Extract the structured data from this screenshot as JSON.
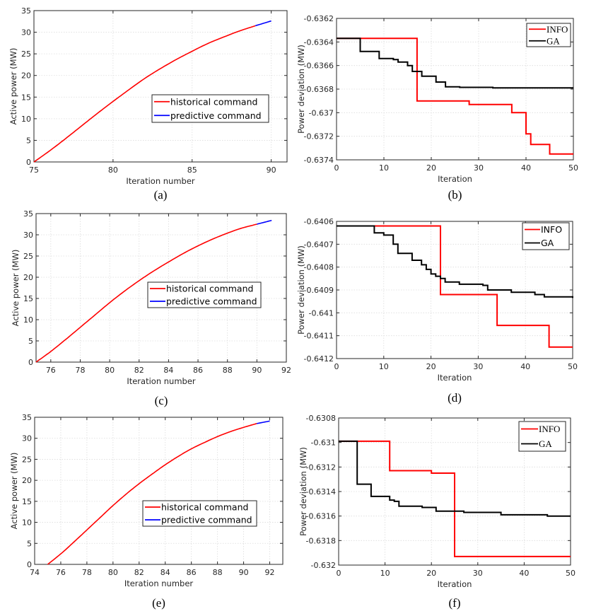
{
  "chart_data": [
    {
      "id": "a",
      "type": "line",
      "caption": "(a)",
      "xlabel": "Iteration number",
      "ylabel": "Active power (MW)",
      "xlim": [
        75,
        91
      ],
      "ylim": [
        0,
        35
      ],
      "xticks": [
        75,
        80,
        85,
        90
      ],
      "yticks": [
        0,
        5,
        10,
        15,
        20,
        25,
        30,
        35
      ],
      "grid": true,
      "legend_position": "center-right",
      "legend_style": "sans",
      "series": [
        {
          "name": "historical command",
          "color": "#ff0000",
          "x": [
            75,
            76,
            77,
            78,
            79,
            80,
            81,
            82,
            83,
            84,
            85,
            86,
            87,
            88,
            89
          ],
          "y": [
            0,
            2.6,
            5.4,
            8.3,
            11.2,
            14.0,
            16.7,
            19.3,
            21.6,
            23.7,
            25.6,
            27.4,
            28.9,
            30.3,
            31.5
          ]
        },
        {
          "name": "predictive command",
          "color": "#0000ff",
          "x": [
            89,
            90
          ],
          "y": [
            31.5,
            32.6
          ]
        }
      ]
    },
    {
      "id": "b",
      "type": "line",
      "step": true,
      "caption": "(b)",
      "xlabel": "Iteration",
      "ylabel": "Power deviation (MW)",
      "xlim": [
        0,
        50
      ],
      "ylim": [
        -0.6374,
        -0.6362
      ],
      "xticks": [
        0,
        10,
        20,
        30,
        40,
        50
      ],
      "yticks": [
        -0.6374,
        -0.6372,
        -0.637,
        -0.6368,
        -0.6366,
        -0.6364,
        -0.6362
      ],
      "ytick_labels": [
        "-0.6374",
        "-0.6372",
        "-0.637",
        "-0.6368",
        "-0.6366",
        "-0.6364",
        "-0.6362"
      ],
      "grid": true,
      "legend_position": "top-right",
      "legend_style": "serif",
      "series": [
        {
          "name": "INFO",
          "color": "#ff0000",
          "x": [
            0,
            17,
            28,
            37,
            40,
            41,
            45,
            50
          ],
          "y": [
            -0.63637,
            -0.6369,
            -0.63693,
            -0.637,
            -0.63718,
            -0.63727,
            -0.63735,
            -0.63735
          ]
        },
        {
          "name": "GA",
          "color": "#000000",
          "x": [
            0,
            5,
            9,
            12,
            13,
            15,
            16,
            18,
            21,
            23,
            26,
            33,
            50
          ],
          "y": [
            -0.63637,
            -0.63648,
            -0.63654,
            -0.63655,
            -0.63657,
            -0.6366,
            -0.63665,
            -0.63669,
            -0.63674,
            -0.63678,
            -0.636785,
            -0.63679,
            -0.63679
          ]
        }
      ]
    },
    {
      "id": "c",
      "type": "line",
      "caption": "(c)",
      "xlabel": "Iteration number",
      "ylabel": "Active power (MW)",
      "xlim": [
        75,
        92
      ],
      "ylim": [
        0,
        35
      ],
      "xticks": [
        76,
        78,
        80,
        82,
        84,
        86,
        88,
        90,
        92
      ],
      "yticks": [
        0,
        5,
        10,
        15,
        20,
        25,
        30,
        35
      ],
      "grid": true,
      "legend_position": "center-right",
      "legend_style": "sans",
      "series": [
        {
          "name": "historical command",
          "color": "#ff0000",
          "x": [
            75,
            76,
            77,
            78,
            79,
            80,
            81,
            82,
            83,
            84,
            85,
            86,
            87,
            88,
            89,
            90
          ],
          "y": [
            0,
            2.5,
            5.3,
            8.2,
            11.1,
            14.0,
            16.7,
            19.2,
            21.5,
            23.6,
            25.6,
            27.4,
            29.0,
            30.4,
            31.6,
            32.5
          ]
        },
        {
          "name": "predictive command",
          "color": "#0000ff",
          "x": [
            90,
            91
          ],
          "y": [
            32.5,
            33.4
          ]
        }
      ]
    },
    {
      "id": "d",
      "type": "line",
      "step": true,
      "caption": "(d)",
      "xlabel": "Iteration",
      "ylabel": "Power deviation (MW)",
      "xlim": [
        0,
        50
      ],
      "ylim": [
        -0.6412,
        -0.6406
      ],
      "xticks": [
        0,
        10,
        20,
        30,
        40,
        50
      ],
      "yticks": [
        -0.6412,
        -0.6411,
        -0.641,
        -0.6409,
        -0.6408,
        -0.6407,
        -0.6406
      ],
      "ytick_labels": [
        "-0.6412",
        "-0.6411",
        "-0.641",
        "-0.6409",
        "-0.6408",
        "-0.6407",
        "-0.6406"
      ],
      "grid": true,
      "legend_position": "top-right",
      "legend_style": "sans",
      "series": [
        {
          "name": "INFO",
          "color": "#ff0000",
          "x": [
            0,
            22,
            34,
            45,
            50
          ],
          "y": [
            -0.64062,
            -0.64092,
            -0.641055,
            -0.64115,
            -0.64115
          ]
        },
        {
          "name": "GA",
          "color": "#000000",
          "x": [
            0,
            8,
            10,
            12,
            13,
            16,
            18,
            19,
            20,
            21,
            22,
            23,
            26,
            31,
            32,
            37,
            42,
            44,
            50
          ],
          "y": [
            -0.64062,
            -0.64065,
            -0.64066,
            -0.6407,
            -0.64074,
            -0.64077,
            -0.64079,
            -0.64081,
            -0.64083,
            -0.64084,
            -0.64085,
            -0.640865,
            -0.640875,
            -0.64088,
            -0.6409,
            -0.64091,
            -0.64092,
            -0.64093,
            -0.640935
          ]
        }
      ]
    },
    {
      "id": "e",
      "type": "line",
      "caption": "(e)",
      "xlabel": "Iteration number",
      "ylabel": "Active power (MW)",
      "xlim": [
        74,
        93
      ],
      "ylim": [
        0,
        35
      ],
      "xticks": [
        74,
        76,
        78,
        80,
        82,
        84,
        86,
        88,
        90,
        92
      ],
      "yticks": [
        0,
        5,
        10,
        15,
        20,
        25,
        30,
        35
      ],
      "grid": true,
      "legend_position": "center-right",
      "legend_style": "sans",
      "series": [
        {
          "name": "historical command",
          "color": "#ff0000",
          "x": [
            75,
            76,
            77,
            78,
            79,
            80,
            81,
            82,
            83,
            84,
            85,
            86,
            87,
            88,
            89,
            90,
            91
          ],
          "y": [
            0,
            2.5,
            5.3,
            8.2,
            11.1,
            14.0,
            16.7,
            19.2,
            21.5,
            23.7,
            25.7,
            27.5,
            29.0,
            30.4,
            31.6,
            32.6,
            33.5
          ]
        },
        {
          "name": "predictive command",
          "color": "#0000ff",
          "x": [
            91,
            92
          ],
          "y": [
            33.5,
            34.1
          ]
        }
      ]
    },
    {
      "id": "f",
      "type": "line",
      "step": true,
      "caption": "(f)",
      "xlabel": "Iteration",
      "ylabel": "Power deviation (MW)",
      "xlim": [
        0,
        50
      ],
      "ylim": [
        -0.632,
        -0.6308
      ],
      "xticks": [
        0,
        10,
        20,
        30,
        40,
        50
      ],
      "yticks": [
        -0.632,
        -0.6318,
        -0.6316,
        -0.6314,
        -0.6312,
        -0.631,
        -0.6308
      ],
      "ytick_labels": [
        "-0.632",
        "-0.6318",
        "-0.6316",
        "-0.6314",
        "-0.6312",
        "-0.631",
        "-0.6308"
      ],
      "grid": true,
      "legend_position": "top-right",
      "legend_style": "serif",
      "series": [
        {
          "name": "INFO",
          "color": "#ff0000",
          "x": [
            0,
            11,
            20,
            25,
            50
          ],
          "y": [
            -0.63099,
            -0.63123,
            -0.63125,
            -0.63193,
            -0.63193
          ]
        },
        {
          "name": "GA",
          "color": "#000000",
          "x": [
            0,
            4,
            7,
            11,
            12,
            13,
            18,
            21,
            27,
            35,
            45,
            50
          ],
          "y": [
            -0.63099,
            -0.63134,
            -0.63144,
            -0.63147,
            -0.63148,
            -0.63152,
            -0.63153,
            -0.63156,
            -0.63157,
            -0.63159,
            -0.6316,
            -0.6316
          ]
        }
      ]
    }
  ]
}
